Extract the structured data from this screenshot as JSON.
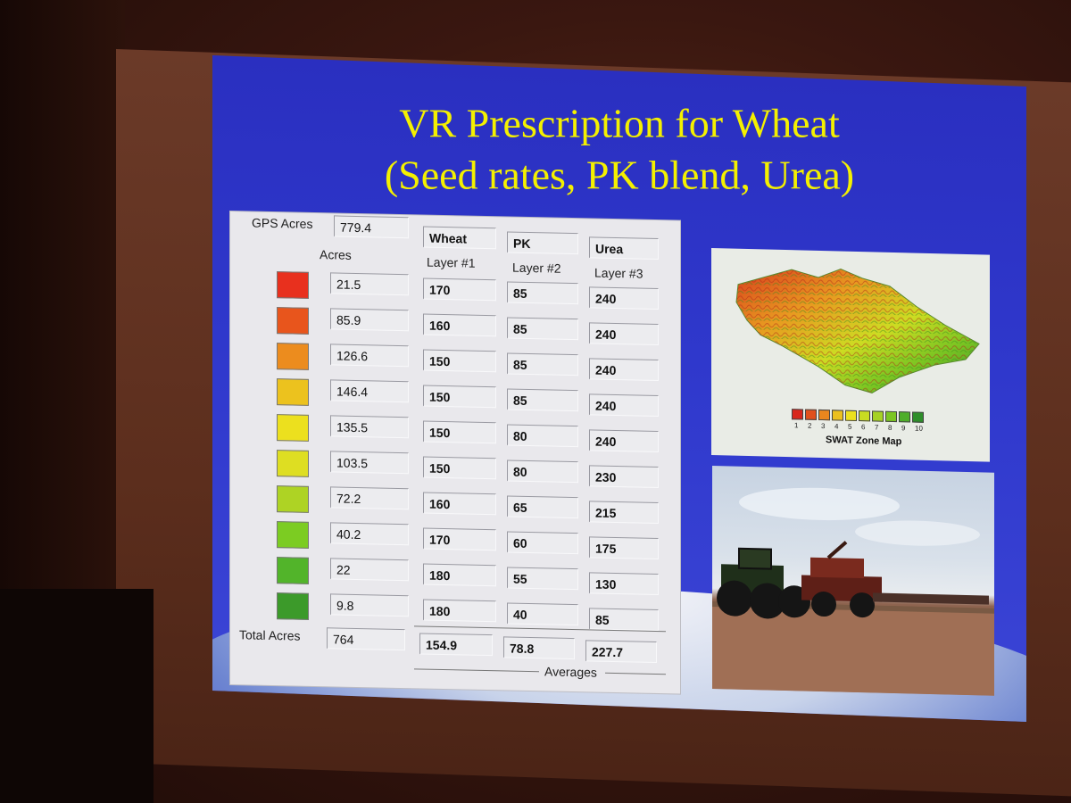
{
  "title": {
    "line1": "VR Prescription for Wheat",
    "line2": "(Seed rates, PK blend, Urea)"
  },
  "panel": {
    "gps_acres_label": "GPS Acres",
    "gps_acres_value": "779.4",
    "acres_header": "Acres",
    "columns": [
      {
        "name": "Wheat",
        "layer": "Layer #1"
      },
      {
        "name": "PK",
        "layer": "Layer #2"
      },
      {
        "name": "Urea",
        "layer": "Layer #3"
      }
    ],
    "zones": [
      {
        "color": "#e8301e",
        "acres": "21.5",
        "wheat": "170",
        "pk": "85",
        "urea": "240"
      },
      {
        "color": "#e8551c",
        "acres": "85.9",
        "wheat": "160",
        "pk": "85",
        "urea": "240"
      },
      {
        "color": "#ec8c1e",
        "acres": "126.6",
        "wheat": "150",
        "pk": "85",
        "urea": "240"
      },
      {
        "color": "#ecc21e",
        "acres": "146.4",
        "wheat": "150",
        "pk": "85",
        "urea": "240"
      },
      {
        "color": "#ece01e",
        "acres": "135.5",
        "wheat": "150",
        "pk": "80",
        "urea": "240"
      },
      {
        "color": "#dede22",
        "acres": "103.5",
        "wheat": "150",
        "pk": "80",
        "urea": "230"
      },
      {
        "color": "#aed324",
        "acres": "72.2",
        "wheat": "160",
        "pk": "65",
        "urea": "215"
      },
      {
        "color": "#7ccc22",
        "acres": "40.2",
        "wheat": "170",
        "pk": "60",
        "urea": "175"
      },
      {
        "color": "#52b42a",
        "acres": "22",
        "wheat": "180",
        "pk": "55",
        "urea": "130"
      },
      {
        "color": "#3c9a2a",
        "acres": "9.8",
        "wheat": "180",
        "pk": "40",
        "urea": "85"
      }
    ],
    "total_acres_label": "Total Acres",
    "total_acres_value": "764",
    "averages": {
      "wheat": "154.9",
      "pk": "78.8",
      "urea": "227.7"
    },
    "averages_label": "Averages"
  },
  "map": {
    "caption": "SWAT Zone Map",
    "legend": [
      {
        "n": "1",
        "color": "#d8261c"
      },
      {
        "n": "2",
        "color": "#e0501c"
      },
      {
        "n": "3",
        "color": "#e8861e"
      },
      {
        "n": "4",
        "color": "#ecc01e"
      },
      {
        "n": "5",
        "color": "#ece01e"
      },
      {
        "n": "6",
        "color": "#c8dc22"
      },
      {
        "n": "7",
        "color": "#a6d224"
      },
      {
        "n": "8",
        "color": "#7cc622"
      },
      {
        "n": "9",
        "color": "#4eae2a"
      },
      {
        "n": "10",
        "color": "#2e8e2a"
      }
    ]
  }
}
